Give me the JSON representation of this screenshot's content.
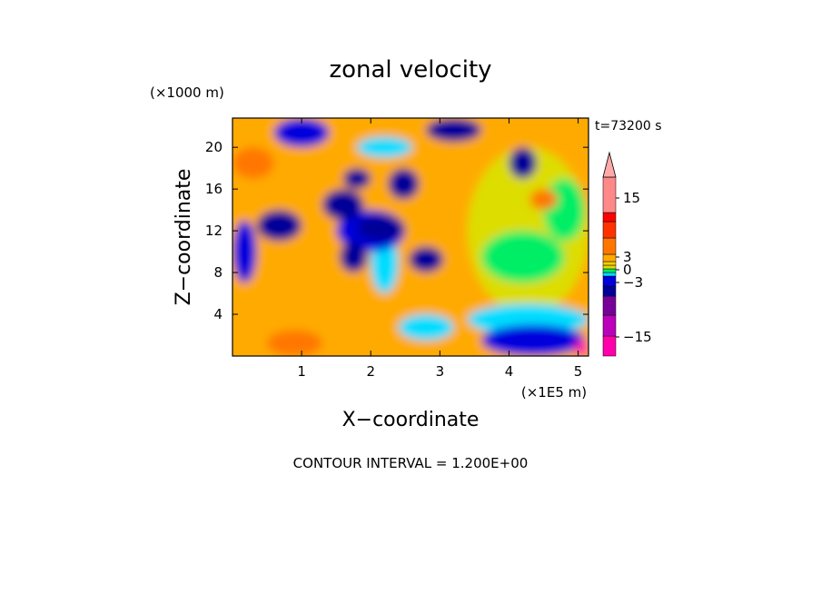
{
  "chart_data": {
    "type": "heatmap",
    "title": "zonal velocity",
    "xlabel": "X−coordinate",
    "ylabel": "Z−coordinate",
    "x_unit": "(×1E5 m)",
    "y_unit": "(×1000 m)",
    "time_label": "t=73200 s",
    "footer": "CONTOUR INTERVAL = 1.200E+00",
    "xlim": [
      0,
      5.15
    ],
    "ylim": [
      0,
      22.8
    ],
    "x_ticks": [
      1,
      2,
      3,
      4,
      5
    ],
    "x_tick_labels": [
      "1",
      "2",
      "3",
      "4",
      "5"
    ],
    "y_ticks": [
      4,
      8,
      12,
      16,
      20
    ],
    "y_tick_labels": [
      "4",
      "8",
      "12",
      "16",
      "20"
    ],
    "contour_interval": 1.2,
    "colorbar": {
      "tick_values": [
        15,
        3,
        0,
        -3,
        -15
      ],
      "tick_labels": [
        "15",
        "3",
        "0",
        "−3",
        "−15"
      ],
      "colors": [
        "#ff00aa",
        "#bb00bb",
        "#770099",
        "#000099",
        "#0000dd",
        "#00ddff",
        "#00ee66",
        "#dddd00",
        "#ffcc00",
        "#ffaa00",
        "#ff7700",
        "#ff3300",
        "#ff0000",
        "#ff8888",
        "#ffaaaa"
      ]
    },
    "regions": [
      {
        "value": 4.5,
        "x": [
          0,
          5.15
        ],
        "y": [
          0,
          22.8
        ]
      },
      {
        "value": 2.0,
        "x": [
          3.4,
          5.15
        ],
        "y": [
          4,
          20
        ]
      },
      {
        "value": 0.6,
        "x": [
          3.6,
          4.8
        ],
        "y": [
          7,
          12
        ]
      },
      {
        "value": 0.6,
        "x": [
          4.5,
          5.1
        ],
        "y": [
          11,
          17
        ]
      },
      {
        "value": -0.8,
        "x": [
          3.4,
          5.15
        ],
        "y": [
          2,
          5
        ]
      },
      {
        "value": -2.0,
        "x": [
          3.6,
          5.1
        ],
        "y": [
          0,
          3
        ]
      },
      {
        "value": -2.0,
        "x": [
          0,
          0.35
        ],
        "y": [
          7,
          13
        ]
      },
      {
        "value": -0.8,
        "x": [
          2.0,
          2.4
        ],
        "y": [
          6,
          12
        ]
      },
      {
        "value": -2.0,
        "x": [
          1.5,
          2.5
        ],
        "y": [
          10,
          14
        ]
      },
      {
        "value": -4.5,
        "x": [
          1.8,
          2.5
        ],
        "y": [
          11,
          13.5
        ]
      },
      {
        "value": -4.5,
        "x": [
          1.3,
          1.9
        ],
        "y": [
          13,
          16
        ]
      },
      {
        "value": -4.5,
        "x": [
          0.35,
          1.0
        ],
        "y": [
          11,
          14
        ]
      },
      {
        "value": -4.5,
        "x": [
          2.25,
          2.7
        ],
        "y": [
          15,
          18
        ]
      },
      {
        "value": -4.5,
        "x": [
          1.6,
          2.0
        ],
        "y": [
          16,
          18
        ]
      },
      {
        "value": -4.5,
        "x": [
          1.55,
          1.95
        ],
        "y": [
          8,
          11
        ]
      },
      {
        "value": -4.5,
        "x": [
          2.55,
          3.05
        ],
        "y": [
          8,
          10.5
        ]
      },
      {
        "value": -4.5,
        "x": [
          2.8,
          3.6
        ],
        "y": [
          20.5,
          22.8
        ]
      },
      {
        "value": -4.5,
        "x": [
          4.0,
          4.4
        ],
        "y": [
          17,
          20
        ]
      },
      {
        "value": -0.8,
        "x": [
          2.4,
          3.2
        ],
        "y": [
          1.5,
          4
        ]
      },
      {
        "value": 8.0,
        "x": [
          0,
          0.6
        ],
        "y": [
          17,
          20
        ]
      },
      {
        "value": 8.0,
        "x": [
          0.5,
          1.3
        ],
        "y": [
          0,
          2.5
        ]
      },
      {
        "value": 5.5,
        "x": [
          1.0,
          1.6
        ],
        "y": [
          4,
          7
        ]
      },
      {
        "value": 8.0,
        "x": [
          4.3,
          4.7
        ],
        "y": [
          14,
          16
        ]
      },
      {
        "value": -2.0,
        "x": [
          0.6,
          1.4
        ],
        "y": [
          20,
          22.8
        ]
      },
      {
        "value": -0.8,
        "x": [
          1.8,
          2.6
        ],
        "y": [
          19,
          21
        ]
      },
      {
        "value": -16,
        "x": [
          4.95,
          5.15
        ],
        "y": [
          0,
          1.5
        ]
      }
    ]
  }
}
